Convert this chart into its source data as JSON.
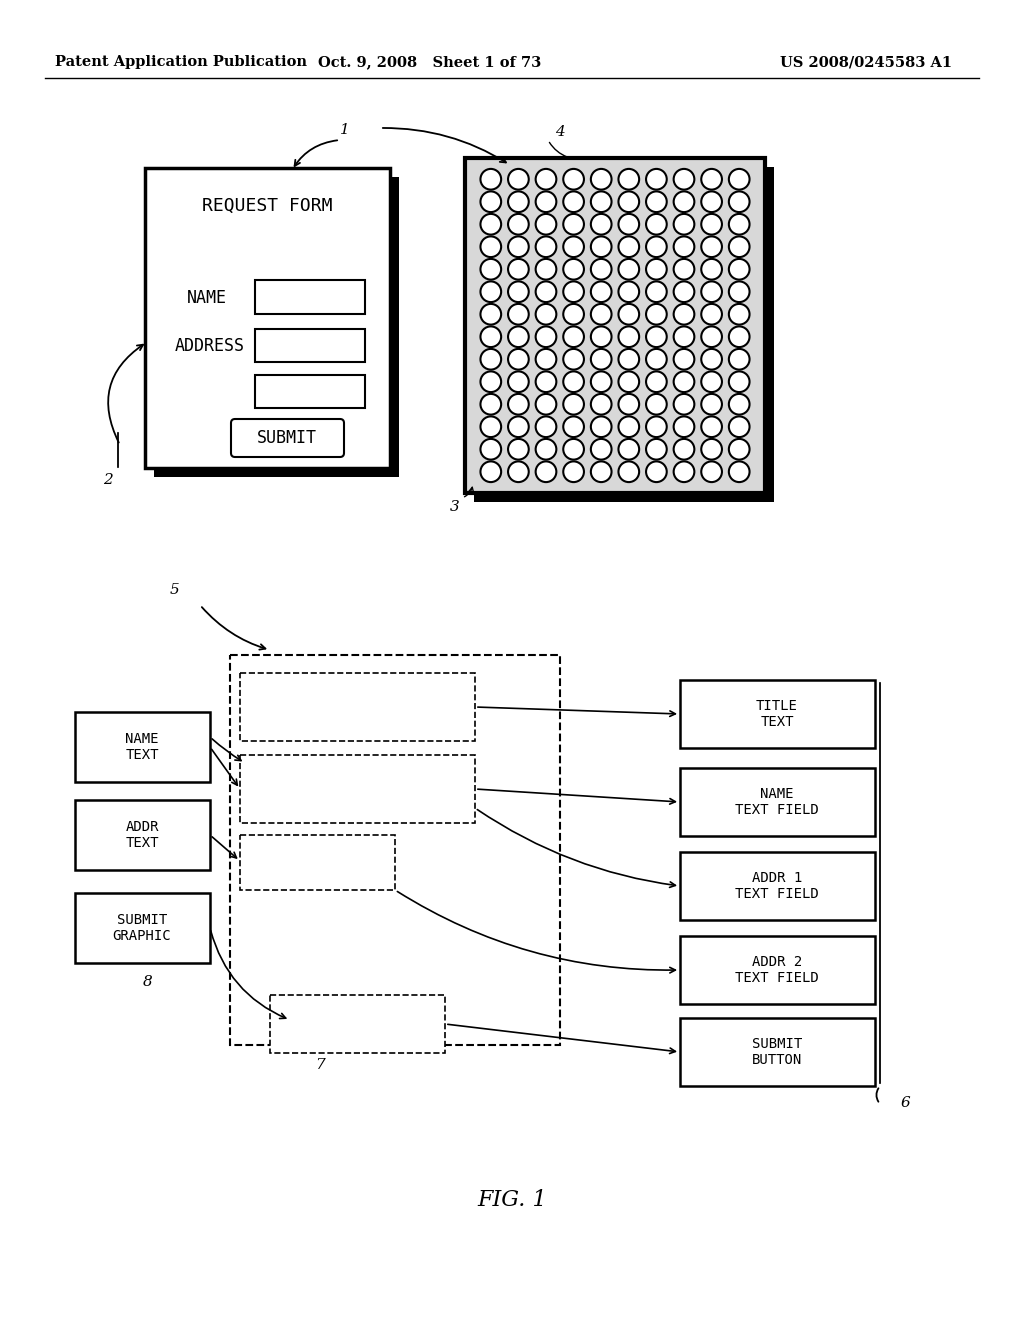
{
  "bg_color": "#ffffff",
  "header_left": "Patent Application Publication",
  "header_mid": "Oct. 9, 2008   Sheet 1 of 73",
  "header_right": "US 2008/0245583 A1",
  "fig_label": "FIG. 1",
  "dot_bg": "#c8c8c8",
  "dot_fill": "#ffffff"
}
